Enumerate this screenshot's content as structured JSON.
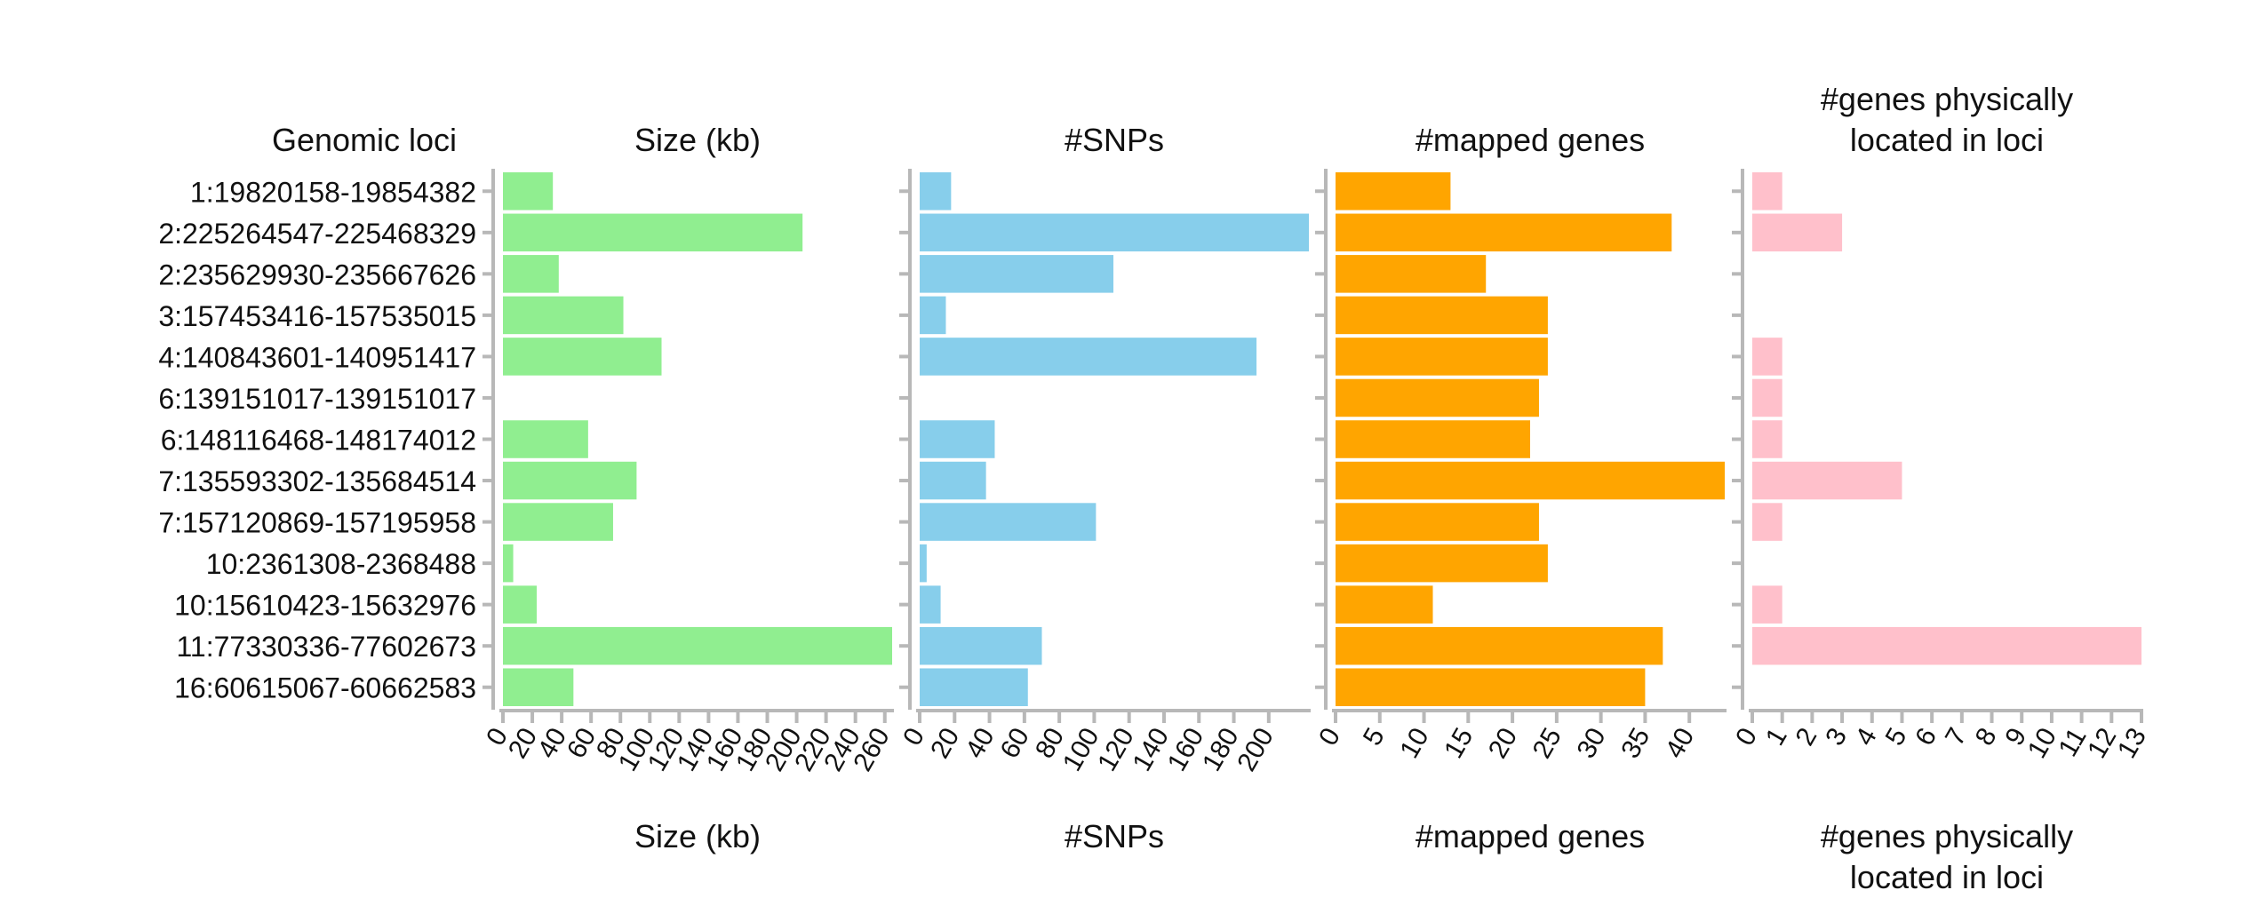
{
  "header": {
    "loci_title": "Genomic loci"
  },
  "chart_data": {
    "type": "bar",
    "orientation": "horizontal",
    "categories": [
      "1:19820158-19854382",
      "2:225264547-225468329",
      "2:235629930-235667626",
      "3:157453416-157535015",
      "4:140843601-140951417",
      "6:139151017-139151017",
      "6:148116468-148174012",
      "7:135593302-135684514",
      "7:157120869-157195958",
      "10:2361308-2368488",
      "10:15610423-15632976",
      "11:77330336-77602673",
      "16:60615067-60662583"
    ],
    "panels": [
      {
        "title": [
          "Size (kb)"
        ],
        "xlabel": [
          "Size (kb)"
        ],
        "color": "#90ee90",
        "xlim": [
          0,
          265
        ],
        "ticks": [
          0,
          20,
          40,
          60,
          80,
          100,
          120,
          140,
          160,
          180,
          200,
          220,
          240,
          260
        ],
        "values": [
          34,
          204,
          38,
          82,
          108,
          0,
          58,
          91,
          75,
          7,
          23,
          272,
          48
        ]
      },
      {
        "title": [
          "#SNPs"
        ],
        "xlabel": [
          "#SNPs"
        ],
        "color": "#87ceeb",
        "xlim": [
          0,
          223
        ],
        "ticks": [
          0,
          20,
          40,
          60,
          80,
          100,
          120,
          140,
          160,
          180,
          200
        ],
        "values": [
          18,
          224,
          111,
          15,
          193,
          0,
          43,
          38,
          101,
          4,
          12,
          70,
          62
        ]
      },
      {
        "title": [
          "#mapped genes"
        ],
        "xlabel": [
          "#mapped genes"
        ],
        "color": "#ffa500",
        "xlim": [
          0,
          44
        ],
        "ticks": [
          0,
          5,
          10,
          15,
          20,
          25,
          30,
          35,
          40
        ],
        "values": [
          13,
          38,
          17,
          24,
          24,
          23,
          22,
          44,
          23,
          24,
          11,
          37,
          35
        ]
      },
      {
        "title": [
          "#genes physically",
          "located in loci"
        ],
        "xlabel": [
          "#genes physically",
          "located in loci"
        ],
        "color": "#ffc0cb",
        "xlim": [
          0,
          13
        ],
        "ticks": [
          0,
          1,
          2,
          3,
          4,
          5,
          6,
          7,
          8,
          9,
          10,
          11,
          12,
          13
        ],
        "values": [
          1,
          3,
          0,
          0,
          1,
          1,
          1,
          5,
          1,
          0,
          1,
          13,
          0
        ]
      }
    ]
  }
}
